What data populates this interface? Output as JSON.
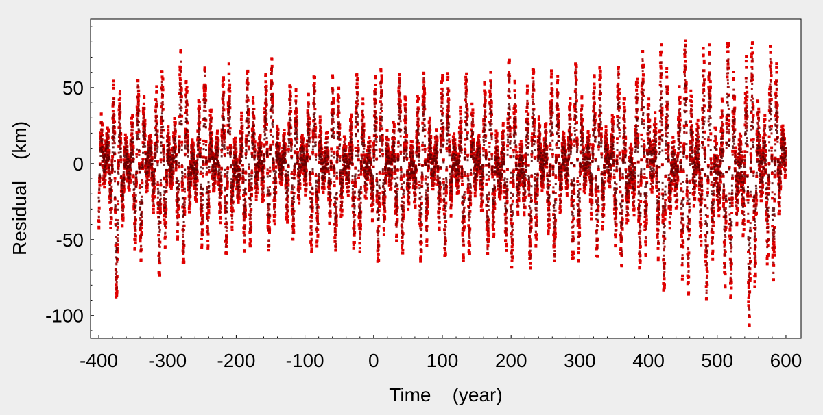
{
  "chart_data": {
    "type": "scatter",
    "title": "",
    "xlabel": "Time    (year)",
    "ylabel": "Residual    (km)",
    "xlim": [
      -412,
      622
    ],
    "ylim": [
      -115,
      95
    ],
    "x_ticks": [
      -400,
      -300,
      -200,
      -100,
      0,
      100,
      200,
      300,
      400,
      500,
      600
    ],
    "x_tick_labels": [
      "-400",
      "-300",
      "-200",
      "-100",
      "0",
      "100",
      "200",
      "300",
      "400",
      "500",
      "600"
    ],
    "y_ticks": [
      -100,
      -50,
      0,
      50
    ],
    "y_tick_labels": [
      "-100",
      "-50",
      "0",
      "50"
    ],
    "grid": false,
    "legend": "none",
    "colors": {
      "points_outer": "#e00000",
      "points_core": "#5a0000",
      "figure_background": "#eeeeee",
      "plot_background": "#ffffff"
    },
    "x_data_range": [
      -400,
      600
    ],
    "series": [
      {
        "values_note": "dense residual time series; per-period positive and negative peak residuals (km)",
        "envelope": {
          "x": [
            -400,
            -390,
            -380,
            -375,
            -370,
            -360,
            -350,
            -340,
            -330,
            -320,
            -310,
            -300,
            -290,
            -280,
            -270,
            -260,
            -250,
            -240,
            -230,
            -220,
            -210,
            -200,
            -190,
            -180,
            -170,
            -160,
            -150,
            -140,
            -130,
            -120,
            -110,
            -100,
            -90,
            -80,
            -70,
            -60,
            -50,
            -40,
            -30,
            -20,
            -10,
            0,
            10,
            20,
            30,
            40,
            50,
            60,
            70,
            80,
            90,
            100,
            110,
            120,
            130,
            140,
            150,
            160,
            170,
            180,
            190,
            200,
            210,
            220,
            230,
            240,
            250,
            260,
            270,
            280,
            290,
            300,
            310,
            320,
            330,
            340,
            350,
            360,
            370,
            380,
            390,
            400,
            410,
            420,
            430,
            440,
            450,
            460,
            470,
            480,
            490,
            500,
            510,
            520,
            530,
            540,
            550,
            560,
            570,
            580,
            590,
            600
          ],
          "upper": [
            45,
            70,
            62,
            40,
            48,
            55,
            60,
            52,
            66,
            58,
            62,
            55,
            64,
            75,
            60,
            58,
            62,
            64,
            62,
            58,
            66,
            60,
            58,
            62,
            58,
            64,
            72,
            55,
            48,
            52,
            58,
            62,
            58,
            55,
            60,
            58,
            52,
            60,
            54,
            62,
            60,
            64,
            62,
            55,
            60,
            58,
            56,
            62,
            60,
            58,
            60,
            58,
            62,
            60,
            58,
            60,
            62,
            58,
            60,
            62,
            56,
            72,
            62,
            64,
            62,
            60,
            68,
            60,
            62,
            66,
            64,
            68,
            66,
            60,
            64,
            60,
            62,
            64,
            58,
            70,
            72,
            84,
            80,
            78,
            64,
            72,
            80,
            82,
            85,
            80,
            78,
            84,
            80,
            78,
            82,
            84,
            78,
            90,
            80,
            76,
            72,
            72
          ],
          "lower": [
            -52,
            -58,
            -70,
            -93,
            -65,
            -55,
            -62,
            -65,
            -55,
            -62,
            -75,
            -62,
            -58,
            -68,
            -60,
            -64,
            -55,
            -60,
            -62,
            -58,
            -60,
            -75,
            -62,
            -55,
            -60,
            -54,
            -58,
            -52,
            -50,
            -48,
            -55,
            -55,
            -58,
            -60,
            -62,
            -58,
            -56,
            -62,
            -60,
            -58,
            -64,
            -68,
            -62,
            -58,
            -60,
            -58,
            -62,
            -66,
            -64,
            -58,
            -60,
            -62,
            -58,
            -60,
            -64,
            -62,
            -60,
            -58,
            -60,
            -72,
            -66,
            -68,
            -70,
            -72,
            -68,
            -62,
            -64,
            -66,
            -60,
            -62,
            -66,
            -64,
            -62,
            -60,
            -62,
            -58,
            -60,
            -66,
            -80,
            -70,
            -68,
            -74,
            -80,
            -86,
            -72,
            -78,
            -76,
            -95,
            -80,
            -92,
            -85,
            -100,
            -90,
            -88,
            -92,
            -95,
            -112,
            -86,
            -90,
            -78,
            -70,
            -50
          ]
        }
      }
    ]
  }
}
